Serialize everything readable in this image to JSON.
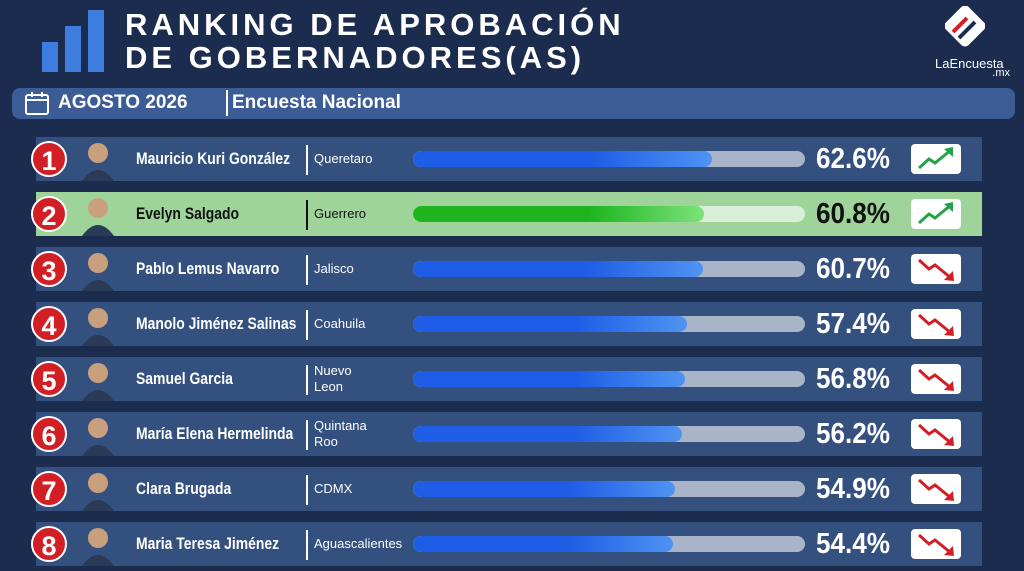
{
  "chart_data": {
    "type": "bar",
    "title": [
      "RANKING DE APROBACIÓN",
      "DE GOBERNADORES(AS)"
    ],
    "period": "AGOSTO 2026",
    "subtitle": "Encuesta Nacional",
    "brand": "LaEncuesta",
    "brand_suffix": ".mx",
    "ranks": [
      1,
      2,
      3,
      4,
      5,
      6,
      7,
      8
    ],
    "categories": [
      "Mauricio Kuri González",
      "Evelyn Salgado",
      "Pablo Lemus Navarro",
      "Manolo Jiménez Salinas",
      "Samuel Garcia",
      "María Elena Hermelinda",
      "Clara Brugada",
      "Maria Teresa Jiménez"
    ],
    "states": [
      "Queretaro",
      "Guerrero",
      "Jalisco",
      "Coahuila",
      "Nuevo Leon",
      "Quintana Roo",
      "CDMX",
      "Aguascalientes"
    ],
    "values": [
      62.6,
      60.8,
      60.7,
      57.4,
      56.8,
      56.2,
      54.9,
      54.4
    ],
    "value_labels": [
      "62.6%",
      "60.8%",
      "60.7%",
      "57.4%",
      "56.8%",
      "56.2%",
      "54.9%",
      "54.4%"
    ],
    "trends": [
      "up",
      "up",
      "down",
      "down",
      "down",
      "down",
      "down",
      "down"
    ],
    "bar_colors": [
      "#1e5ee6",
      "#1db41d",
      "#1e5ee6",
      "#1e5ee6",
      "#1e5ee6",
      "#1e5ee6",
      "#1e5ee6",
      "#1e5ee6"
    ],
    "row_colors": [
      "#34507f",
      "#9ed49a",
      "#34507f",
      "#34507f",
      "#34507f",
      "#34507f",
      "#34507f",
      "#34507f"
    ],
    "xlim": [
      0,
      82
    ]
  }
}
